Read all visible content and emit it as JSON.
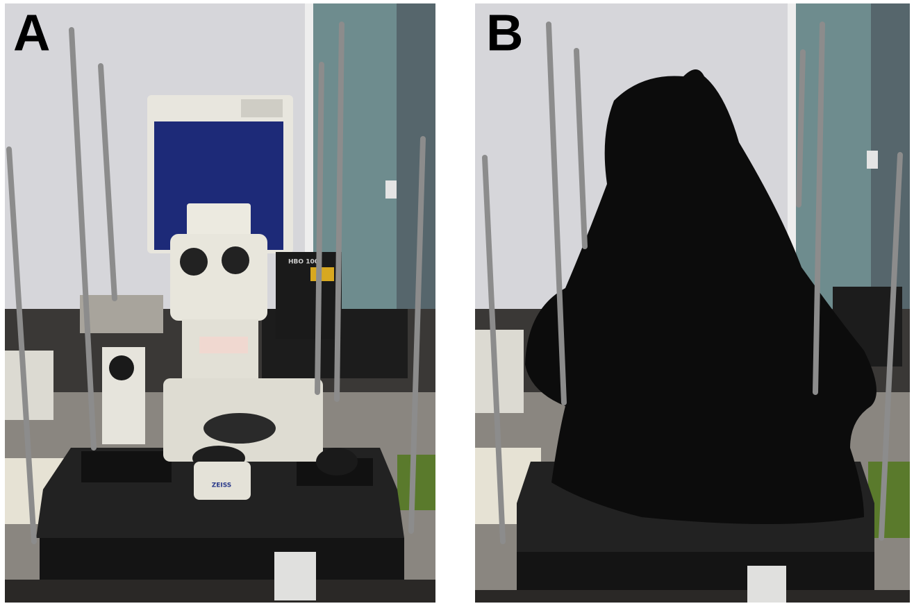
{
  "panels": [
    {
      "label": "A",
      "texts": [
        "HBO 100",
        "ZEISS"
      ]
    },
    {
      "label": "B"
    }
  ]
}
